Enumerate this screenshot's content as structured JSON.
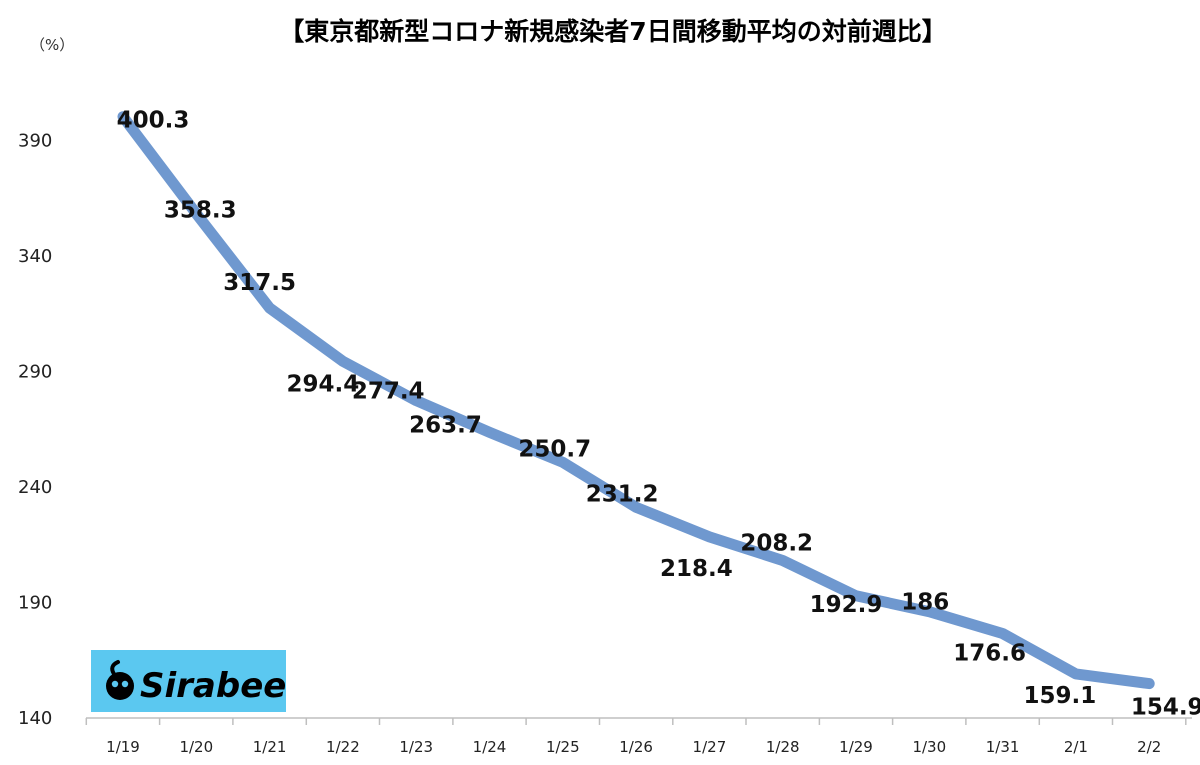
{
  "chart_data": {
    "type": "line",
    "title": "【東京都新型コロナ新規感染者7日間移動平均の対前週比】",
    "unit_label": "（%）",
    "xlabel": "",
    "ylabel": "",
    "categories": [
      "1/19",
      "1/20",
      "1/21",
      "1/22",
      "1/23",
      "1/24",
      "1/25",
      "1/26",
      "1/27",
      "1/28",
      "1/29",
      "1/30",
      "1/31",
      "2/1",
      "2/2"
    ],
    "series": [
      {
        "values": [
          400.3,
          358.3,
          317.5,
          294.4,
          277.4,
          263.7,
          250.7,
          231.2,
          218.4,
          208.2,
          192.9,
          186,
          176.6,
          159.1,
          154.9
        ]
      }
    ],
    "data_labels": [
      "400.3",
      "358.3",
      "317.5",
      "294.4",
      "277.4",
      "263.7",
      "250.7",
      "231.2",
      "218.4",
      "208.2",
      "192.9",
      "186",
      "176.6",
      "159.1",
      "154.9"
    ],
    "yticks": [
      "140",
      "190",
      "240",
      "290",
      "340",
      "390"
    ],
    "ytick_values": [
      140,
      190,
      240,
      290,
      340,
      390
    ],
    "ylim": [
      140,
      410
    ],
    "grid": false,
    "line_color": "#6f98cf"
  },
  "logo": {
    "text": "Sirabee",
    "background": "#5bc8f0"
  }
}
